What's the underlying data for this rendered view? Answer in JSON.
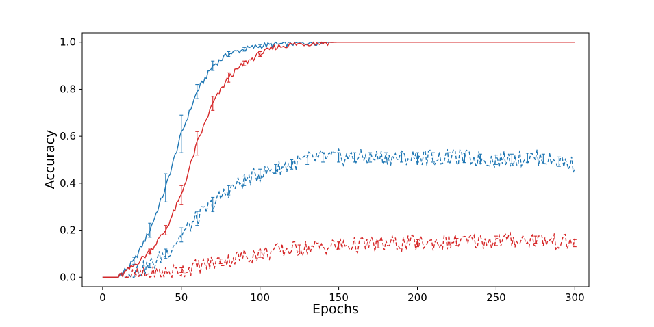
{
  "chart_data": {
    "type": "line",
    "title": "",
    "xlabel": "Epochs",
    "ylabel": "Accuracy",
    "xlim": [
      -13,
      309
    ],
    "ylim": [
      -0.04,
      1.04
    ],
    "xticks": [
      0,
      50,
      100,
      150,
      200,
      250,
      300
    ],
    "yticks": [
      0.0,
      0.2,
      0.4,
      0.6,
      0.8,
      1.0
    ],
    "xtick_labels": [
      "0",
      "50",
      "100",
      "150",
      "200",
      "250",
      "300"
    ],
    "ytick_labels": [
      "0.0",
      "0.2",
      "0.4",
      "0.6",
      "0.8",
      "1.0"
    ],
    "grid": false,
    "legend": "none",
    "series": [
      {
        "color": "#1f77b4",
        "style": "solid",
        "x": [
          0,
          10,
          20,
          30,
          40,
          50,
          60,
          70,
          80,
          90,
          100,
          110,
          120,
          130,
          140,
          150,
          175,
          200,
          250,
          300
        ],
        "y": [
          0.0,
          0.0,
          0.07,
          0.2,
          0.38,
          0.61,
          0.79,
          0.9,
          0.95,
          0.97,
          0.985,
          0.99,
          0.995,
          0.998,
          0.999,
          1.0,
          1.0,
          1.0,
          1.0,
          1.0
        ],
        "errorbars": {
          "x": [
            20,
            30,
            40,
            50,
            60,
            70,
            80,
            90,
            100
          ],
          "err": [
            0.015,
            0.03,
            0.06,
            0.08,
            0.03,
            0.02,
            0.01,
            0.008,
            0.005
          ]
        }
      },
      {
        "color": "#d62728",
        "style": "solid",
        "x": [
          0,
          10,
          20,
          30,
          40,
          50,
          60,
          70,
          80,
          90,
          100,
          110,
          120,
          130,
          140,
          150,
          175,
          200,
          250,
          300
        ],
        "y": [
          0.0,
          0.0,
          0.05,
          0.11,
          0.2,
          0.35,
          0.57,
          0.74,
          0.85,
          0.91,
          0.95,
          0.98,
          0.99,
          0.995,
          0.998,
          1.0,
          1.0,
          1.0,
          1.0,
          1.0
        ],
        "errorbars": {
          "x": [
            30,
            40,
            50,
            60,
            70,
            80,
            90,
            100
          ],
          "err": [
            0.01,
            0.02,
            0.04,
            0.05,
            0.03,
            0.02,
            0.01,
            0.01
          ]
        }
      },
      {
        "color": "#1f77b4",
        "style": "dashed",
        "x": [
          0,
          10,
          20,
          30,
          40,
          50,
          60,
          70,
          80,
          90,
          100,
          110,
          120,
          130,
          140,
          150,
          175,
          200,
          225,
          250,
          275,
          300
        ],
        "y": [
          0.0,
          0.0,
          0.02,
          0.05,
          0.1,
          0.18,
          0.25,
          0.31,
          0.37,
          0.41,
          0.44,
          0.46,
          0.48,
          0.5,
          0.51,
          0.51,
          0.51,
          0.51,
          0.51,
          0.5,
          0.51,
          0.48
        ],
        "errorbars": {
          "x": [
            30,
            40,
            50,
            60,
            70,
            80,
            90,
            100,
            110,
            120,
            130,
            140,
            150,
            160,
            170,
            180,
            190,
            200,
            210,
            220,
            230,
            240,
            250,
            260,
            270,
            280,
            290
          ],
          "err": [
            0.01,
            0.02,
            0.03,
            0.03,
            0.03,
            0.02,
            0.02,
            0.02,
            0.02,
            0.02,
            0.02,
            0.02,
            0.02,
            0.02,
            0.02,
            0.02,
            0.02,
            0.02,
            0.02,
            0.02,
            0.02,
            0.02,
            0.02,
            0.02,
            0.02,
            0.02,
            0.02
          ]
        }
      },
      {
        "color": "#d62728",
        "style": "dashed",
        "x": [
          0,
          10,
          20,
          30,
          40,
          50,
          60,
          70,
          80,
          90,
          100,
          110,
          120,
          130,
          140,
          150,
          175,
          200,
          225,
          250,
          275,
          300
        ],
        "y": [
          0.0,
          0.0,
          0.005,
          0.01,
          0.02,
          0.03,
          0.045,
          0.06,
          0.075,
          0.09,
          0.1,
          0.11,
          0.12,
          0.125,
          0.13,
          0.135,
          0.14,
          0.145,
          0.15,
          0.155,
          0.16,
          0.145
        ],
        "errorbars": {
          "x": [
            50,
            75,
            100,
            125,
            150,
            175,
            200,
            225,
            250,
            275,
            300
          ],
          "err": [
            0.01,
            0.01,
            0.015,
            0.015,
            0.015,
            0.015,
            0.015,
            0.015,
            0.02,
            0.015,
            0.015
          ]
        }
      }
    ]
  }
}
